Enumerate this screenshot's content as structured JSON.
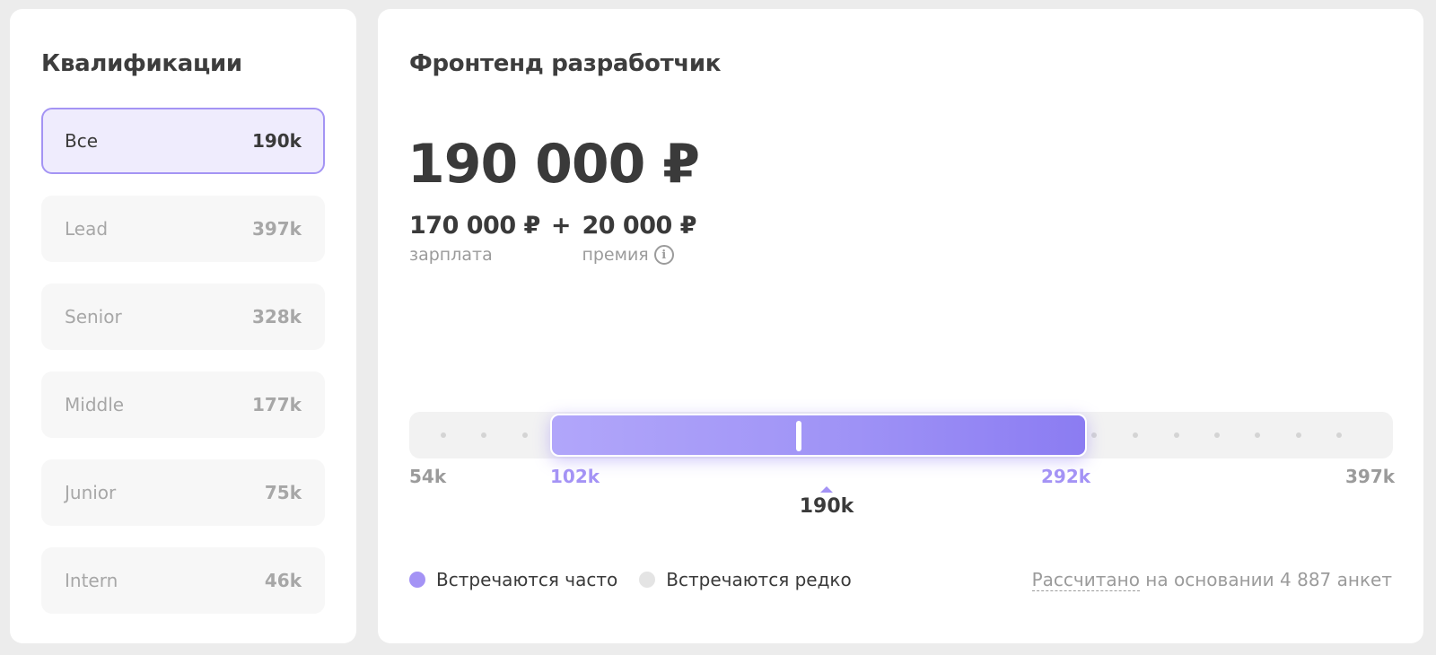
{
  "qualifications": {
    "title": "Квалификации",
    "items": [
      {
        "label": "Все",
        "value": "190k",
        "active": true
      },
      {
        "label": "Lead",
        "value": "397k",
        "active": false
      },
      {
        "label": "Senior",
        "value": "328k",
        "active": false
      },
      {
        "label": "Middle",
        "value": "177k",
        "active": false
      },
      {
        "label": "Junior",
        "value": "75k",
        "active": false
      },
      {
        "label": "Intern",
        "value": "46k",
        "active": false
      }
    ]
  },
  "salary": {
    "title": "Фронтенд разработчик",
    "total": "190 000 ₽",
    "base_amount": "170 000 ₽",
    "plus": "+",
    "bonus_amount": "20 000 ₽",
    "base_caption": "зарплата",
    "bonus_caption": "премия",
    "info_icon": "i"
  },
  "range": {
    "min_label": "54k",
    "low_label": "102k",
    "high_label": "292k",
    "max_label": "397k",
    "median_label": "190k",
    "min": 54,
    "low": 102,
    "median": 190,
    "high": 292,
    "max": 397
  },
  "legend": {
    "frequent": "Встречаются часто",
    "rare": "Встречаются редко",
    "frequent_color": "#a493f5",
    "rare_color": "#e4e4e4"
  },
  "footnote": {
    "link_text": "Рассчитано",
    "rest_text": " на основании 4 887 анкет"
  },
  "colors": {
    "accent": "#a493f5",
    "active_bg": "#efecfd"
  }
}
